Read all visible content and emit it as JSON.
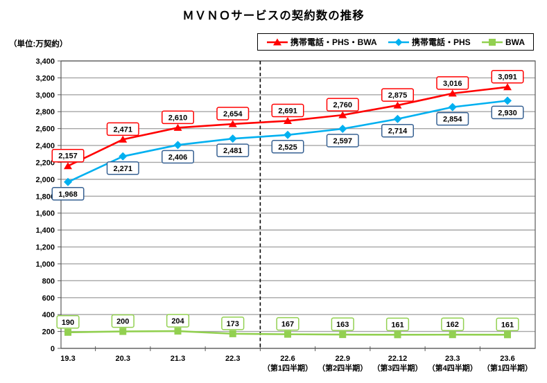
{
  "chart_data": {
    "type": "line",
    "title": "ＭＶＮＯサービスの契約数の推移",
    "unit_label": "（単位:万契約）",
    "categories": [
      {
        "label": "19.3",
        "sublabel": ""
      },
      {
        "label": "20.3",
        "sublabel": ""
      },
      {
        "label": "21.3",
        "sublabel": ""
      },
      {
        "label": "22.3",
        "sublabel": ""
      },
      {
        "label": "22.6",
        "sublabel": "（第1四半期）"
      },
      {
        "label": "22.9",
        "sublabel": "（第2四半期）"
      },
      {
        "label": "22.12",
        "sublabel": "（第3四半期）"
      },
      {
        "label": "23.3",
        "sublabel": "（第4四半期）"
      },
      {
        "label": "23.6",
        "sublabel": "（第1四半期）"
      }
    ],
    "series": [
      {
        "name": "携帯電話・PHS・BWA",
        "color": "#FF0000",
        "label_border": "#FF0000",
        "marker": "triangle",
        "label_position": "above",
        "values": [
          2157,
          2471,
          2610,
          2654,
          2691,
          2760,
          2875,
          3016,
          3091
        ]
      },
      {
        "name": "携帯電話・PHS",
        "color": "#00B0F0",
        "label_border": "#366092",
        "marker": "diamond",
        "label_position": "below",
        "values": [
          1968,
          2271,
          2406,
          2481,
          2525,
          2597,
          2714,
          2854,
          2930
        ]
      },
      {
        "name": "BWA",
        "color": "#92D050",
        "label_border": "#92D050",
        "marker": "square",
        "label_position": "above",
        "values": [
          190,
          200,
          204,
          173,
          167,
          163,
          161,
          162,
          161
        ]
      }
    ],
    "ylim": [
      0,
      3400
    ],
    "ytick_step": 200,
    "grid": true,
    "legend_position": "top",
    "divider_after_category": "22.3",
    "colors": {
      "gridline": "#A6A6A6",
      "plot_border": "#595959",
      "divider": "#000000"
    }
  }
}
